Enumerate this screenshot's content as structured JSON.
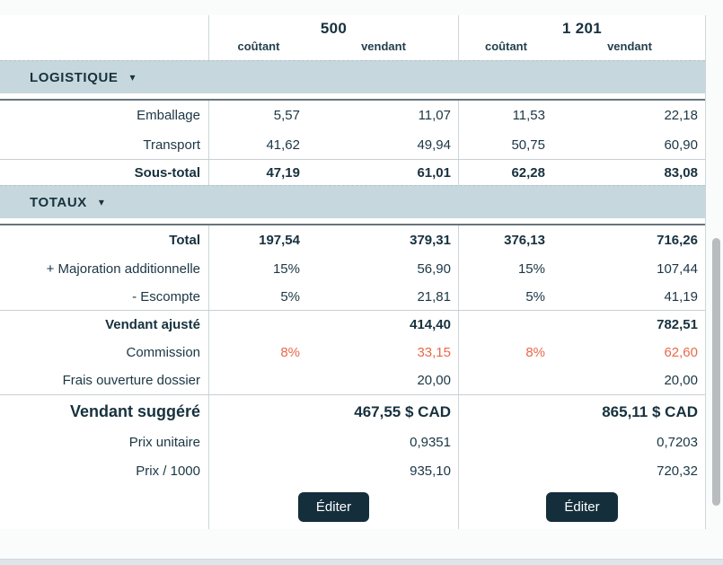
{
  "header": {
    "group1": {
      "qty": "500",
      "cost": "coûtant",
      "sell": "vendant"
    },
    "group2": {
      "qty": "1 201",
      "cost": "coûtant",
      "sell": "vendant"
    }
  },
  "logistique": {
    "title": "LOGISTIQUE",
    "emballage": {
      "label": "Emballage",
      "c1": "5,57",
      "s1": "11,07",
      "c2": "11,53",
      "s2": "22,18"
    },
    "transport": {
      "label": "Transport",
      "c1": "41,62",
      "s1": "49,94",
      "c2": "50,75",
      "s2": "60,90"
    },
    "sous_total": {
      "label": "Sous-total",
      "c1": "47,19",
      "s1": "61,01",
      "c2": "62,28",
      "s2": "83,08"
    }
  },
  "totaux": {
    "title": "TOTAUX",
    "total": {
      "label": "Total",
      "c1": "197,54",
      "s1": "379,31",
      "c2": "376,13",
      "s2": "716,26"
    },
    "majoration": {
      "label": "+ Majoration additionnelle",
      "c1": "15%",
      "s1": "56,90",
      "c2": "15%",
      "s2": "107,44"
    },
    "escompte": {
      "label": "- Escompte",
      "c1": "5%",
      "s1": "21,81",
      "c2": "5%",
      "s2": "41,19"
    },
    "vendant_ajuste": {
      "label": "Vendant ajusté",
      "s1": "414,40",
      "s2": "782,51"
    },
    "commission": {
      "label": "Commission",
      "c1": "8%",
      "s1": "33,15",
      "c2": "8%",
      "s2": "62,60"
    },
    "frais_dossier": {
      "label": "Frais ouverture dossier",
      "s1": "20,00",
      "s2": "20,00"
    },
    "vendant_suggere": {
      "label": "Vendant suggéré",
      "s1": "467,55 $ CAD",
      "s2": "865,11 $ CAD"
    },
    "prix_unitaire": {
      "label": "Prix unitaire",
      "s1": "0,9351",
      "s2": "0,7203"
    },
    "prix_1000": {
      "label": "Prix / 1000",
      "s1": "935,10",
      "s2": "720,32"
    }
  },
  "actions": {
    "edit_label": "Éditer"
  },
  "icons": {
    "collapse_arrow": "▾"
  },
  "colors": {
    "band": "#c6d8dd",
    "text_dark": "#17313e",
    "accent_orange": "#e8694a",
    "button_bg": "#142e3c"
  }
}
